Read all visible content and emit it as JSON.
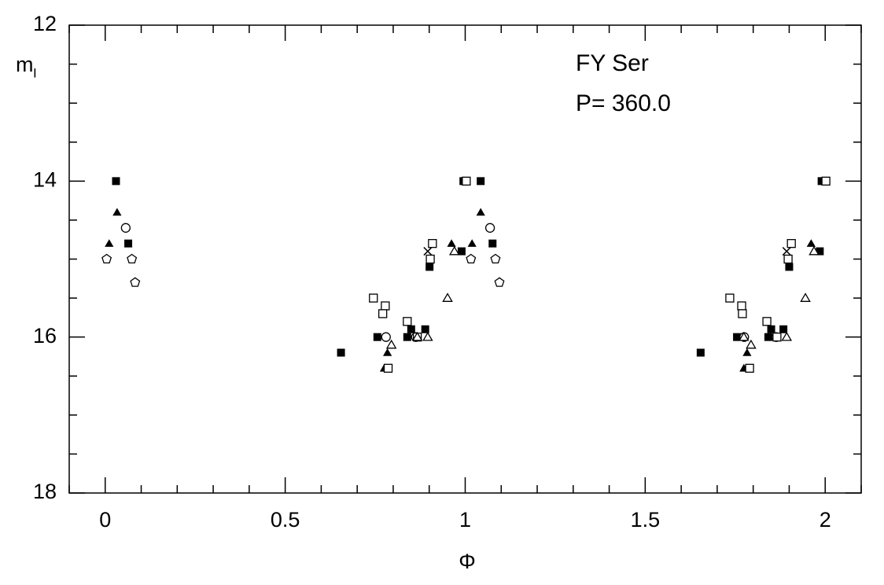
{
  "chart_data": {
    "type": "scatter",
    "xlabel": "Φ",
    "ylabel": "m",
    "ylabel_subscript": "I",
    "annotations": [
      "FY Ser",
      "P= 360.0"
    ],
    "xlim": [
      -0.1,
      2.1
    ],
    "xticks": [
      0,
      0.5,
      1,
      1.5,
      2
    ],
    "xminorticks": [
      -0.1,
      0.1,
      0.2,
      0.3,
      0.4,
      0.6,
      0.7,
      0.8,
      0.9,
      1.1,
      1.2,
      1.3,
      1.4,
      1.6,
      1.7,
      1.8,
      1.9,
      2.1
    ],
    "ylim": [
      18,
      12
    ],
    "yticks": [
      12,
      14,
      16,
      18
    ],
    "yminorticks": [
      12.5,
      13,
      13.5,
      14.5,
      15,
      15.5,
      16.5,
      17,
      17.5
    ],
    "color": "#000000",
    "series": [
      {
        "marker": "filled-square",
        "x": [
          0.03,
          0.064,
          0.655,
          0.756,
          0.839,
          0.85,
          0.889,
          0.901,
          0.99,
          0.995,
          1.043,
          1.076,
          1.654,
          1.755,
          1.842,
          1.85,
          1.884,
          1.9,
          1.985,
          1.99
        ],
        "values": [
          14.0,
          14.8,
          16.2,
          16.0,
          16.0,
          15.9,
          15.9,
          15.1,
          14.9,
          14.0,
          14.0,
          14.8,
          16.2,
          16.0,
          16.0,
          15.9,
          15.9,
          15.1,
          14.9,
          14.0
        ]
      },
      {
        "marker": "filled-triangle",
        "x": [
          0.011,
          0.033,
          0.775,
          0.784,
          0.962,
          1.019,
          1.043,
          1.774,
          1.783,
          1.961
        ],
        "values": [
          14.8,
          14.4,
          16.4,
          16.2,
          14.8,
          14.8,
          14.4,
          16.4,
          16.2,
          14.8
        ]
      },
      {
        "marker": "open-circle",
        "x": [
          0.057,
          0.78,
          0.863,
          1.069,
          1.775,
          1.864
        ],
        "values": [
          14.6,
          16.0,
          16.0,
          14.6,
          16.0,
          16.0
        ]
      },
      {
        "marker": "open-pentagon",
        "x": [
          0.004,
          0.074,
          0.083,
          1.016,
          1.084,
          1.095
        ],
        "values": [
          15.0,
          15.0,
          15.3,
          15.0,
          15.0,
          15.3
        ]
      },
      {
        "marker": "open-square",
        "x": [
          0.745,
          0.778,
          0.771,
          0.839,
          0.867,
          0.786,
          0.903,
          0.909,
          1.003,
          1.735,
          1.768,
          1.77,
          1.838,
          1.866,
          1.79,
          1.897,
          1.906,
          2.002
        ],
        "values": [
          15.5,
          15.6,
          15.7,
          15.8,
          16.0,
          16.4,
          15.0,
          14.8,
          14.0,
          15.5,
          15.6,
          15.7,
          15.8,
          16.0,
          16.4,
          15.0,
          14.8,
          14.0
        ]
      },
      {
        "marker": "open-triangle",
        "x": [
          0.795,
          0.867,
          0.896,
          0.951,
          0.97,
          1.794,
          1.774,
          1.893,
          1.945,
          1.969
        ],
        "values": [
          16.1,
          16.0,
          16.0,
          15.5,
          14.9,
          16.1,
          16.0,
          16.0,
          15.5,
          14.9
        ]
      },
      {
        "marker": "cross",
        "x": [
          0.896,
          1.893
        ],
        "values": [
          14.9,
          14.9
        ]
      }
    ]
  }
}
